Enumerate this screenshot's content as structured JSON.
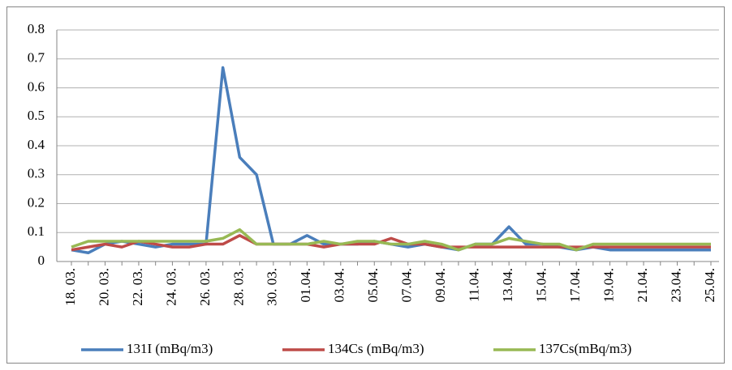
{
  "chart_data": {
    "type": "line",
    "categories": [
      "18. 03.",
      null,
      "20. 03.",
      null,
      "22. 03.",
      null,
      "24. 03.",
      null,
      "26. 03.",
      null,
      "28. 03.",
      null,
      "30. 03.",
      null,
      "01.04.",
      null,
      "03.04.",
      null,
      "05.04.",
      null,
      "07.04.",
      null,
      "09.04.",
      null,
      "11.04.",
      null,
      "13.04.",
      null,
      "15.04.",
      null,
      "17.04.",
      null,
      "19.04.",
      null,
      "21.04.",
      null,
      "23.04.",
      null,
      "25.04."
    ],
    "series": [
      {
        "name": "131I (mBq/m3)",
        "color": "#4a7ebb",
        "values": [
          0.04,
          0.03,
          0.06,
          0.07,
          0.06,
          0.05,
          0.06,
          0.06,
          0.06,
          0.67,
          0.36,
          0.3,
          0.06,
          0.06,
          0.09,
          0.06,
          0.06,
          0.06,
          0.07,
          0.06,
          0.05,
          0.06,
          0.05,
          0.04,
          0.06,
          0.06,
          0.12,
          0.06,
          0.06,
          0.05,
          0.04,
          0.05,
          0.04,
          0.04,
          0.04,
          0.04,
          0.04,
          0.04,
          0.04
        ]
      },
      {
        "name": "134Cs (mBq/m3)",
        "color": "#be4b48",
        "values": [
          0.04,
          0.05,
          0.06,
          0.05,
          0.07,
          0.06,
          0.05,
          0.05,
          0.06,
          0.06,
          0.09,
          0.06,
          0.06,
          0.06,
          0.06,
          0.05,
          0.06,
          0.06,
          0.06,
          0.08,
          0.06,
          0.06,
          0.05,
          0.05,
          0.05,
          0.05,
          0.05,
          0.05,
          0.05,
          0.05,
          0.05,
          0.05,
          0.05,
          0.05,
          0.05,
          0.05,
          0.05,
          0.05,
          0.05
        ]
      },
      {
        "name": "137Cs(mBq/m3)",
        "color": "#98b954",
        "values": [
          0.05,
          0.07,
          0.07,
          0.07,
          0.07,
          0.07,
          0.07,
          0.07,
          0.07,
          0.08,
          0.11,
          0.06,
          0.06,
          0.06,
          0.06,
          0.07,
          0.06,
          0.07,
          0.07,
          0.06,
          0.06,
          0.07,
          0.06,
          0.04,
          0.06,
          0.06,
          0.08,
          0.07,
          0.06,
          0.06,
          0.04,
          0.06,
          0.06,
          0.06,
          0.06,
          0.06,
          0.06,
          0.06,
          0.06
        ]
      }
    ],
    "ylim": [
      0,
      0.8
    ],
    "yticks": [
      0,
      0.1,
      0.2,
      0.3,
      0.4,
      0.5,
      0.6,
      0.7,
      0.8
    ],
    "grid": true,
    "legend": "bottom"
  }
}
